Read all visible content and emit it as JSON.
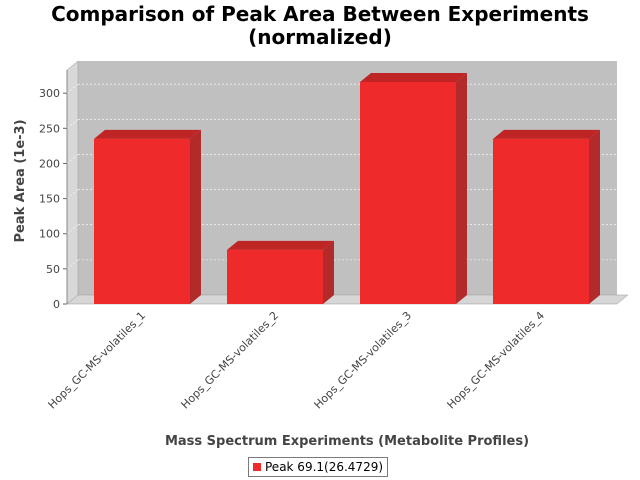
{
  "colors": {
    "bar_front": "#ee2a2a",
    "bar_top": "#c02525",
    "bar_side": "#b32a2a",
    "plot_back": "#c0c0c0",
    "plot_wall": "#d8d8d8",
    "floor": "#d6d6d6",
    "grid": "#ffffff",
    "axis_text": "#444444"
  },
  "chart_data": {
    "type": "bar",
    "title_line1": "Comparison of Peak Area Between Experiments",
    "title_line2": "(normalized)",
    "xlabel": "Mass Spectrum Experiments (Metabolite Profiles)",
    "ylabel": "Peak Area (1e-3)",
    "categories": [
      "Hops_GC-MS-volatiles_1",
      "Hops_GC-MS-volatiles_2",
      "Hops_GC-MS-volatiles_3",
      "Hops_GC-MS-volatiles_4"
    ],
    "series": [
      {
        "name": "Peak 69.1(26.4729)",
        "values": [
          235,
          77,
          316,
          235
        ]
      }
    ],
    "ylim": [
      0,
      333
    ],
    "yticks": [
      0,
      50,
      100,
      150,
      200,
      250,
      300
    ],
    "grid": true,
    "legend": "bottom",
    "bar_style": "3d"
  }
}
